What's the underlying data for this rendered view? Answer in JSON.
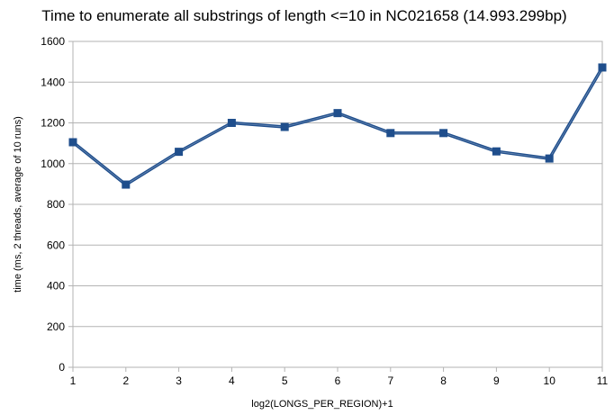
{
  "chart_data": {
    "type": "line",
    "title": "Time to enumerate all substrings of length <=10 in NC021658 (14.993.299bp)",
    "xlabel": "log2(LONGS_PER_REGION)+1",
    "ylabel": "time (ms, 2 threads, average of 10 runs)",
    "x": [
      1,
      2,
      3,
      4,
      5,
      6,
      7,
      8,
      9,
      10,
      11
    ],
    "series": [
      {
        "values": [
          1105,
          897,
          1058,
          1200,
          1180,
          1248,
          1150,
          1150,
          1060,
          1025,
          1472
        ]
      }
    ],
    "ylim": [
      0,
      1600
    ],
    "yticks": [
      0,
      200,
      400,
      600,
      800,
      1000,
      1200,
      1400,
      1600
    ],
    "xticks": [
      1,
      2,
      3,
      4,
      5,
      6,
      7,
      8,
      9,
      10,
      11
    ],
    "grid": "horizontal",
    "legend": "none",
    "line_color": "#1f4e8c",
    "marker": "square"
  }
}
